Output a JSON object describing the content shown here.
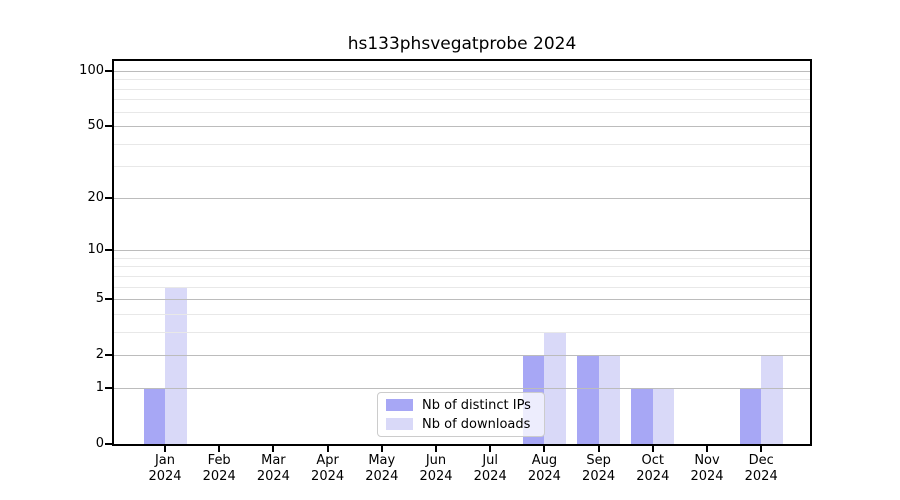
{
  "title": "hs133phsvegatprobe 2024",
  "chart_data": {
    "type": "bar",
    "categories": [
      "Jan 2024",
      "Feb 2024",
      "Mar 2024",
      "Apr 2024",
      "May 2024",
      "Jun 2024",
      "Jul 2024",
      "Aug 2024",
      "Sep 2024",
      "Oct 2024",
      "Nov 2024",
      "Dec 2024"
    ],
    "x_tick_line1": [
      "Jan",
      "Feb",
      "Mar",
      "Apr",
      "May",
      "Jun",
      "Jul",
      "Aug",
      "Sep",
      "Oct",
      "Nov",
      "Dec"
    ],
    "x_tick_line2": [
      "2024",
      "2024",
      "2024",
      "2024",
      "2024",
      "2024",
      "2024",
      "2024",
      "2024",
      "2024",
      "2024",
      "2024"
    ],
    "series": [
      {
        "name": "Nb of distinct IPs",
        "color": "#a7a7f5",
        "values": [
          1,
          0,
          0,
          0,
          0,
          0,
          0,
          2,
          2,
          1,
          0,
          1
        ]
      },
      {
        "name": "Nb of downloads",
        "color": "#d9d9f8",
        "values": [
          6,
          0,
          0,
          0,
          0,
          0,
          0,
          3,
          2,
          1,
          0,
          2
        ]
      }
    ],
    "title": "hs133phsvegatprobe 2024",
    "xlabel": "",
    "ylabel": "",
    "yscale": "log1p",
    "y_major_ticks": [
      0,
      1,
      2,
      5,
      10,
      20,
      50,
      100
    ],
    "y_major_tick_labels": [
      "0",
      "1",
      "2",
      "5",
      "10",
      "20",
      "50",
      "100"
    ],
    "y_minor_ticks": [
      3,
      4,
      6,
      7,
      8,
      9,
      30,
      40,
      60,
      70,
      80,
      90
    ],
    "ylim": [
      0,
      113
    ],
    "grid": true,
    "legend_position": "lower-center",
    "legend_entries": [
      "Nb of distinct IPs",
      "Nb of downloads"
    ]
  },
  "colors": {
    "bar_distinct_ips": "#a7a7f5",
    "bar_downloads": "#d9d9f8",
    "grid_major": "#bcbcbc",
    "grid_minor": "#e8e8e8",
    "axis": "#000000",
    "legend_border": "#cccccc",
    "legend_background": "rgba(255,255,255,0.8)",
    "text": "#000000"
  }
}
